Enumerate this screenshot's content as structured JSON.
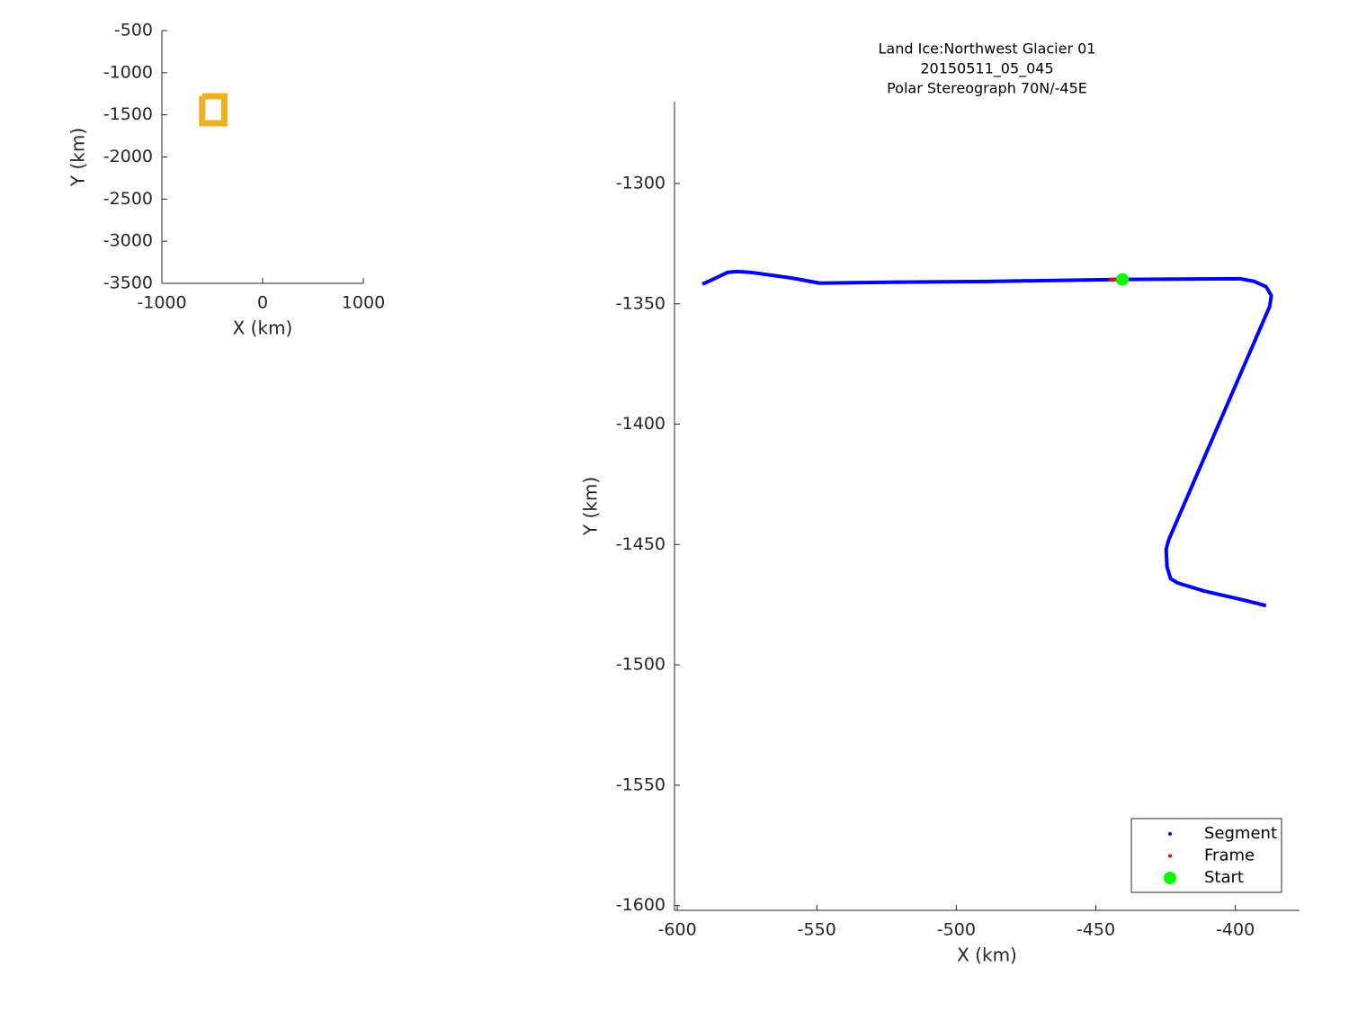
{
  "chart_data": [
    {
      "type": "line",
      "xlabel": "X (km)",
      "ylabel": "Y (km)",
      "xlim": [
        -1000,
        1000
      ],
      "ylim": [
        -3500,
        -500
      ],
      "xticks": [
        -1000,
        0,
        1000
      ],
      "yticks": [
        -3500,
        -3000,
        -2500,
        -2000,
        -1500,
        -1000,
        -500
      ],
      "series": [
        {
          "color": "#edb120",
          "x": [
            -600,
            -380,
            -380,
            -600,
            -600
          ],
          "values": [
            -1280,
            -1280,
            -1600,
            -1600,
            -1280
          ]
        }
      ]
    },
    {
      "type": "line",
      "title": [
        "Land Ice:Northwest Glacier 01",
        "20150511_05_045",
        "Polar Stereograph 70N/-45E"
      ],
      "xlabel": "X (km)",
      "ylabel": "Y (km)",
      "xlim": [
        -601,
        -377
      ],
      "ylim": [
        -1602,
        -1266
      ],
      "xticks": [
        -600,
        -550,
        -500,
        -450,
        -400
      ],
      "yticks": [
        -1600,
        -1550,
        -1500,
        -1450,
        -1400,
        -1350,
        -1300
      ],
      "legend": "lower right",
      "series": [
        {
          "name": "Segment",
          "color": "#0000ff",
          "style": "line",
          "x": [
            -591.0,
            -586.8,
            -581.9,
            -578.7,
            -573.9,
            -559.4,
            -549.0,
            -520.6,
            -488.4,
            -443.2,
            -398.1,
            -393.2,
            -389.0,
            -387.1,
            -387.7,
            -423.9,
            -424.8,
            -424.5,
            -423.2,
            -420.6,
            -411.0,
            -398.1,
            -389.0
          ],
          "values": [
            -1341.8,
            -1339.6,
            -1336.9,
            -1336.6,
            -1336.9,
            -1339.2,
            -1341.4,
            -1341.0,
            -1340.7,
            -1339.9,
            -1339.6,
            -1340.7,
            -1342.9,
            -1346.6,
            -1351.1,
            -1448.1,
            -1451.9,
            -1459.3,
            -1464.2,
            -1466.0,
            -1469.4,
            -1472.8,
            -1475.4
          ]
        },
        {
          "name": "Frame",
          "color": "#ff0000",
          "style": "line",
          "x": [
            -445.2,
            -440.5
          ],
          "values": [
            -1339.9,
            -1339.9
          ]
        },
        {
          "name": "Start",
          "color": "#00ff00",
          "style": "marker",
          "x": [
            -440.5
          ],
          "values": [
            -1339.9
          ]
        }
      ]
    }
  ]
}
